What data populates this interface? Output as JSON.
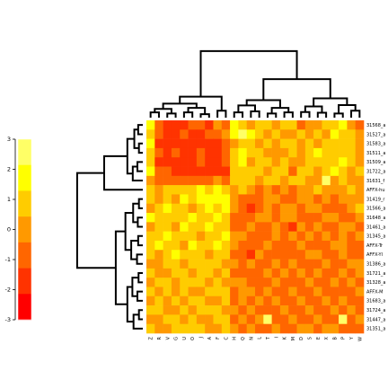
{
  "chart_data": {
    "type": "heatmap",
    "palette": [
      "#ff0000",
      "#ff3300",
      "#ff6600",
      "#ff9900",
      "#ffcc00",
      "#ffff00",
      "#ffff66"
    ],
    "colorbar": {
      "range": [
        -3,
        3
      ],
      "ticks": [
        "3",
        "2",
        "1",
        "0",
        "-1",
        "-2",
        "-3"
      ]
    },
    "columns": [
      "Z",
      "R",
      "V",
      "G",
      "U",
      "O",
      "J",
      "A",
      "F",
      "C",
      "H",
      "Q",
      "N",
      "L",
      "T",
      "I",
      "K",
      "M",
      "D",
      "S",
      "E",
      "X",
      "B",
      "P",
      "Y",
      "W"
    ],
    "rows": [
      "31568_a",
      "31527_a",
      "31583_a",
      "31511_a",
      "31509_a",
      "31722_a",
      "31631_f",
      "AFFX-hu",
      "31419_r",
      "31566_a",
      "31648_a",
      "31461_a",
      "31345_a",
      "AFFX-Tr",
      "AFFX-Yl",
      "31386_a",
      "31721_a",
      "31328_a",
      "AFFX-M",
      "31683_a",
      "31724_a",
      "31447_a",
      "31351_a"
    ],
    "values": [
      [
        5,
        2,
        1,
        1,
        1,
        2,
        2,
        1,
        3,
        2,
        5,
        4,
        3,
        4,
        4,
        3,
        4,
        4,
        2,
        3,
        3,
        4,
        4,
        5,
        3,
        2
      ],
      [
        4,
        2,
        1,
        1,
        2,
        1,
        1,
        2,
        2,
        3,
        5,
        6,
        5,
        4,
        3,
        4,
        3,
        3,
        4,
        3,
        4,
        3,
        5,
        4,
        4,
        3
      ],
      [
        5,
        1,
        1,
        1,
        1,
        1,
        1,
        1,
        1,
        2,
        3,
        4,
        4,
        3,
        4,
        3,
        4,
        4,
        3,
        4,
        3,
        4,
        4,
        4,
        4,
        3
      ],
      [
        4,
        2,
        1,
        2,
        1,
        1,
        2,
        1,
        1,
        2,
        4,
        5,
        4,
        4,
        3,
        3,
        3,
        4,
        3,
        4,
        5,
        4,
        4,
        4,
        4,
        3
      ],
      [
        4,
        1,
        1,
        1,
        1,
        1,
        2,
        1,
        1,
        2,
        4,
        5,
        3,
        4,
        4,
        3,
        4,
        3,
        3,
        4,
        4,
        4,
        4,
        5,
        4,
        3
      ],
      [
        5,
        2,
        2,
        1,
        1,
        1,
        1,
        1,
        1,
        1,
        4,
        4,
        4,
        4,
        3,
        4,
        4,
        2,
        4,
        4,
        3,
        4,
        5,
        4,
        3,
        4
      ],
      [
        3,
        2,
        2,
        2,
        2,
        2,
        2,
        2,
        3,
        2,
        4,
        4,
        4,
        3,
        4,
        4,
        3,
        4,
        4,
        3,
        3,
        6,
        3,
        4,
        3,
        3
      ],
      [
        4,
        3,
        4,
        4,
        4,
        4,
        5,
        4,
        5,
        4,
        3,
        4,
        3,
        2,
        3,
        2,
        3,
        2,
        3,
        3,
        4,
        3,
        3,
        3,
        4,
        3
      ],
      [
        4,
        3,
        4,
        3,
        5,
        4,
        5,
        5,
        5,
        5,
        3,
        2,
        2,
        2,
        3,
        3,
        2,
        2,
        3,
        3,
        2,
        3,
        2,
        3,
        3,
        3
      ],
      [
        3,
        4,
        5,
        4,
        4,
        3,
        4,
        5,
        4,
        5,
        3,
        2,
        1,
        2,
        3,
        2,
        3,
        3,
        2,
        3,
        3,
        2,
        2,
        2,
        3,
        4
      ],
      [
        5,
        4,
        4,
        4,
        4,
        5,
        4,
        4,
        5,
        4,
        2,
        2,
        2,
        3,
        3,
        2,
        3,
        3,
        2,
        2,
        2,
        3,
        3,
        2,
        2,
        3
      ],
      [
        3,
        4,
        4,
        3,
        5,
        4,
        4,
        5,
        4,
        4,
        2,
        2,
        3,
        2,
        2,
        3,
        2,
        1,
        3,
        2,
        3,
        2,
        2,
        3,
        3,
        2
      ],
      [
        4,
        4,
        5,
        4,
        4,
        4,
        3,
        4,
        4,
        5,
        3,
        3,
        2,
        2,
        2,
        3,
        2,
        3,
        2,
        3,
        2,
        3,
        2,
        3,
        2,
        3
      ],
      [
        4,
        5,
        4,
        4,
        3,
        5,
        4,
        4,
        5,
        4,
        3,
        2,
        2,
        2,
        3,
        2,
        2,
        2,
        3,
        2,
        2,
        2,
        3,
        3,
        2,
        2
      ],
      [
        4,
        3,
        4,
        5,
        4,
        4,
        4,
        3,
        4,
        4,
        2,
        2,
        1,
        3,
        2,
        2,
        2,
        2,
        2,
        3,
        3,
        2,
        2,
        3,
        2,
        2
      ],
      [
        3,
        3,
        4,
        4,
        3,
        4,
        4,
        4,
        4,
        3,
        3,
        2,
        3,
        2,
        2,
        3,
        2,
        3,
        2,
        2,
        2,
        3,
        2,
        2,
        3,
        3
      ],
      [
        4,
        3,
        3,
        4,
        4,
        3,
        4,
        4,
        3,
        4,
        2,
        2,
        2,
        2,
        3,
        2,
        3,
        2,
        3,
        2,
        3,
        2,
        2,
        3,
        2,
        3
      ],
      [
        3,
        4,
        4,
        3,
        4,
        4,
        4,
        3,
        4,
        3,
        3,
        3,
        2,
        2,
        2,
        3,
        2,
        2,
        2,
        3,
        2,
        2,
        3,
        2,
        3,
        2
      ],
      [
        4,
        3,
        4,
        3,
        4,
        3,
        3,
        4,
        4,
        4,
        2,
        3,
        3,
        2,
        3,
        2,
        2,
        3,
        2,
        2,
        3,
        2,
        2,
        2,
        2,
        3
      ],
      [
        3,
        4,
        3,
        4,
        3,
        4,
        4,
        3,
        3,
        4,
        2,
        3,
        2,
        3,
        2,
        3,
        2,
        2,
        3,
        2,
        2,
        3,
        2,
        3,
        2,
        2
      ],
      [
        4,
        4,
        3,
        3,
        4,
        3,
        4,
        4,
        4,
        3,
        3,
        2,
        3,
        2,
        2,
        2,
        3,
        2,
        2,
        3,
        2,
        2,
        3,
        2,
        3,
        2
      ],
      [
        3,
        3,
        4,
        4,
        3,
        4,
        3,
        3,
        4,
        4,
        2,
        3,
        2,
        3,
        6,
        2,
        2,
        3,
        2,
        2,
        3,
        2,
        2,
        6,
        2,
        3
      ],
      [
        4,
        3,
        3,
        4,
        4,
        4,
        4,
        3,
        3,
        4,
        3,
        2,
        3,
        2,
        2,
        3,
        2,
        2,
        3,
        3,
        2,
        3,
        3,
        2,
        2,
        2
      ]
    ]
  }
}
